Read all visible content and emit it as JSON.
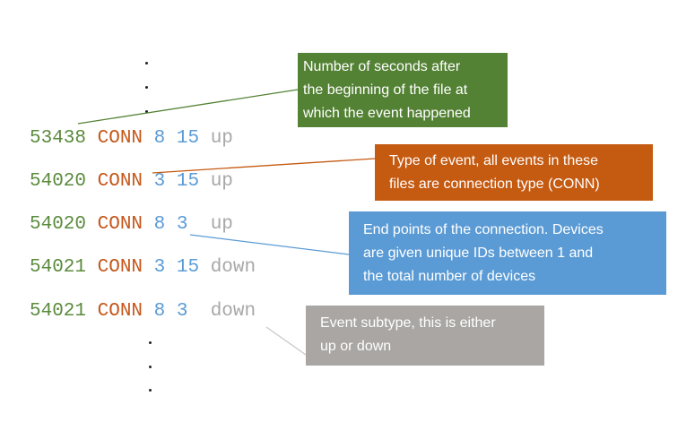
{
  "rows": [
    {
      "timestamp": "53438",
      "type": "CONN",
      "device_a": "8",
      "device_b": "15",
      "subtype": "up"
    },
    {
      "timestamp": "54020",
      "type": "CONN",
      "device_a": "3",
      "device_b": "15",
      "subtype": "up"
    },
    {
      "timestamp": "54020",
      "type": "CONN",
      "device_a": "8",
      "device_b": "3",
      "subtype": "up"
    },
    {
      "timestamp": "54021",
      "type": "CONN",
      "device_a": "3",
      "device_b": "15",
      "subtype": "down"
    },
    {
      "timestamp": "54021",
      "type": "CONN",
      "device_a": "8",
      "device_b": "3",
      "subtype": "down"
    }
  ],
  "callouts": {
    "timestamp": {
      "line1": "Number of seconds after",
      "line2": "the beginning of the file at",
      "line3": "which the event happened",
      "color": "#548235"
    },
    "type": {
      "line1": "Type of event, all events in these",
      "line2": "files are connection type (CONN)",
      "color": "#c55a11"
    },
    "devices": {
      "line1": "End points of the connection. Devices",
      "line2": "are given unique IDs between 1 and",
      "line3": "the total number of devices",
      "color": "#5b9bd5"
    },
    "subtype": {
      "line1": "Event subtype, this is either",
      "line2": "up or down",
      "color": "#a9a6a3"
    }
  }
}
